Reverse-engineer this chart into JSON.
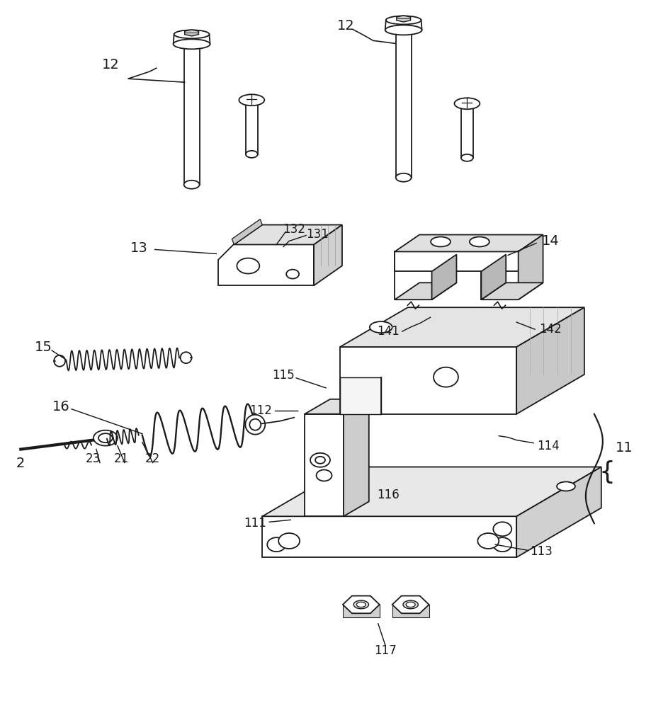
{
  "bg_color": "#ffffff",
  "line_color": "#1a1a1a",
  "lw": 1.3,
  "figsize": [
    9.2,
    10.0
  ],
  "dpi": 100
}
